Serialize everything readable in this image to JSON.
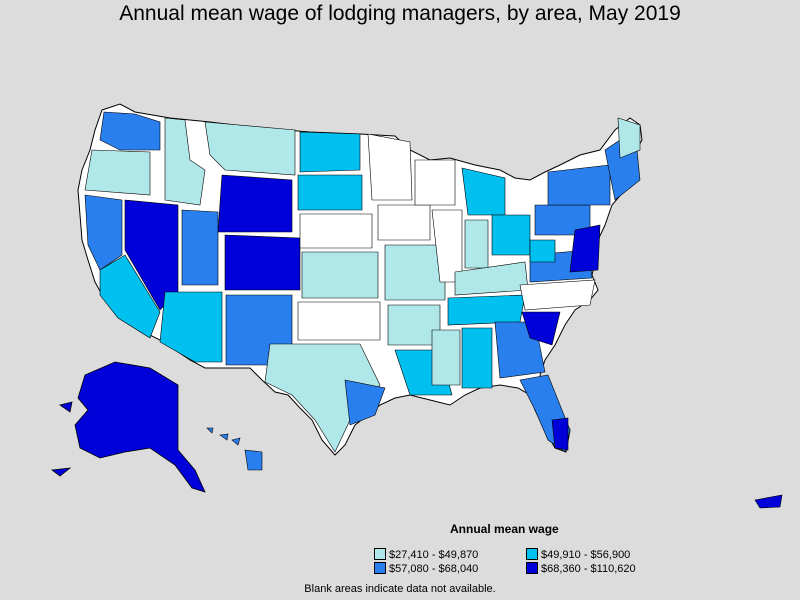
{
  "title": "Annual mean wage of lodging managers, by area, May 2019",
  "legend": {
    "title": "Annual mean wage",
    "items": [
      {
        "label": "$27,410 - $49,870",
        "color": "#b0e8ea"
      },
      {
        "label": "$49,910 - $56,900",
        "color": "#00c0f0"
      },
      {
        "label": "$57,080 - $68,040",
        "color": "#2a7fee"
      },
      {
        "label": "$68,360 - $110,620",
        "color": "#0000d8"
      }
    ]
  },
  "note": "Blank areas indicate data not available.",
  "colors": {
    "background": "#dcdcdc",
    "no_data": "#ffffff",
    "border": "#000000"
  }
}
